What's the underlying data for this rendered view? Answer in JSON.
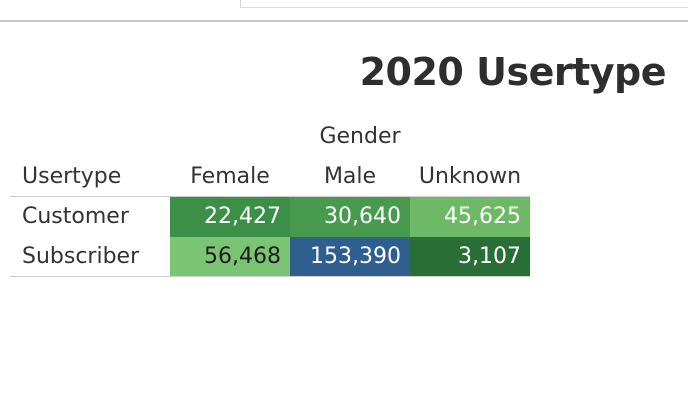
{
  "title": "2020 Usertype",
  "table": {
    "column_group": "Gender",
    "row_field": "Usertype",
    "columns": [
      "Female",
      "Male",
      "Unknown"
    ],
    "rows": [
      {
        "label": "Customer",
        "cells": [
          {
            "value": "22,427",
            "color": "#3c8f46",
            "text_color": "#ffffff"
          },
          {
            "value": "30,640",
            "color": "#489a4f",
            "text_color": "#ffffff"
          },
          {
            "value": "45,625",
            "color": "#6db966",
            "text_color": "#ffffff"
          }
        ]
      },
      {
        "label": "Subscriber",
        "cells": [
          {
            "value": "56,468",
            "color": "#7bc473",
            "text_color": "#1e1e1e"
          },
          {
            "value": "153,390",
            "color": "#2f5f8f",
            "text_color": "#ffffff"
          },
          {
            "value": "3,107",
            "color": "#2a6e37",
            "text_color": "#ffffff"
          }
        ]
      }
    ]
  }
}
